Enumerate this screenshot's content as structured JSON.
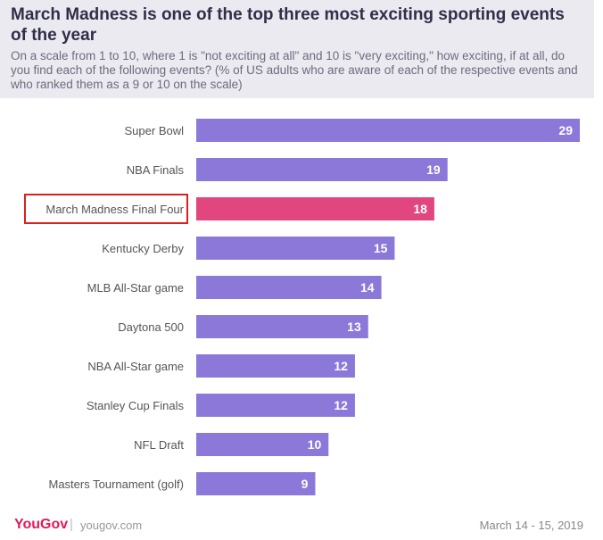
{
  "header": {
    "title": "March Madness is one of the top three most exciting sporting events of the year",
    "subtitle": "On a scale from 1 to 10, where 1 is \"not exciting at all\" and 10 is \"very exciting,\" how exciting, if at all, do you find each of the following events? (% of US adults who are aware of each of the respective events and who ranked them as a 9 or 10 on the scale)"
  },
  "chart_data": {
    "type": "bar",
    "orientation": "horizontal",
    "categories": [
      "Super Bowl",
      "NBA Finals",
      "March Madness Final Four",
      "Kentucky Derby",
      "MLB All-Star game",
      "Daytona 500",
      "NBA All-Star game",
      "Stanley Cup Finals",
      "NFL Draft",
      "Masters Tournament (golf)"
    ],
    "values": [
      29,
      19,
      18,
      15,
      14,
      13,
      12,
      12,
      10,
      9
    ],
    "highlight": "March Madness Final Four",
    "colors": {
      "bar": "#8b78d8",
      "highlight": "#e2467e",
      "highlight_box": "#d9201c"
    },
    "xlim": [
      0,
      29
    ],
    "grid": false
  },
  "footer": {
    "brand": "YouGov",
    "separator": "|",
    "site": "yougov.com",
    "date": "March 14 - 15, 2019"
  }
}
